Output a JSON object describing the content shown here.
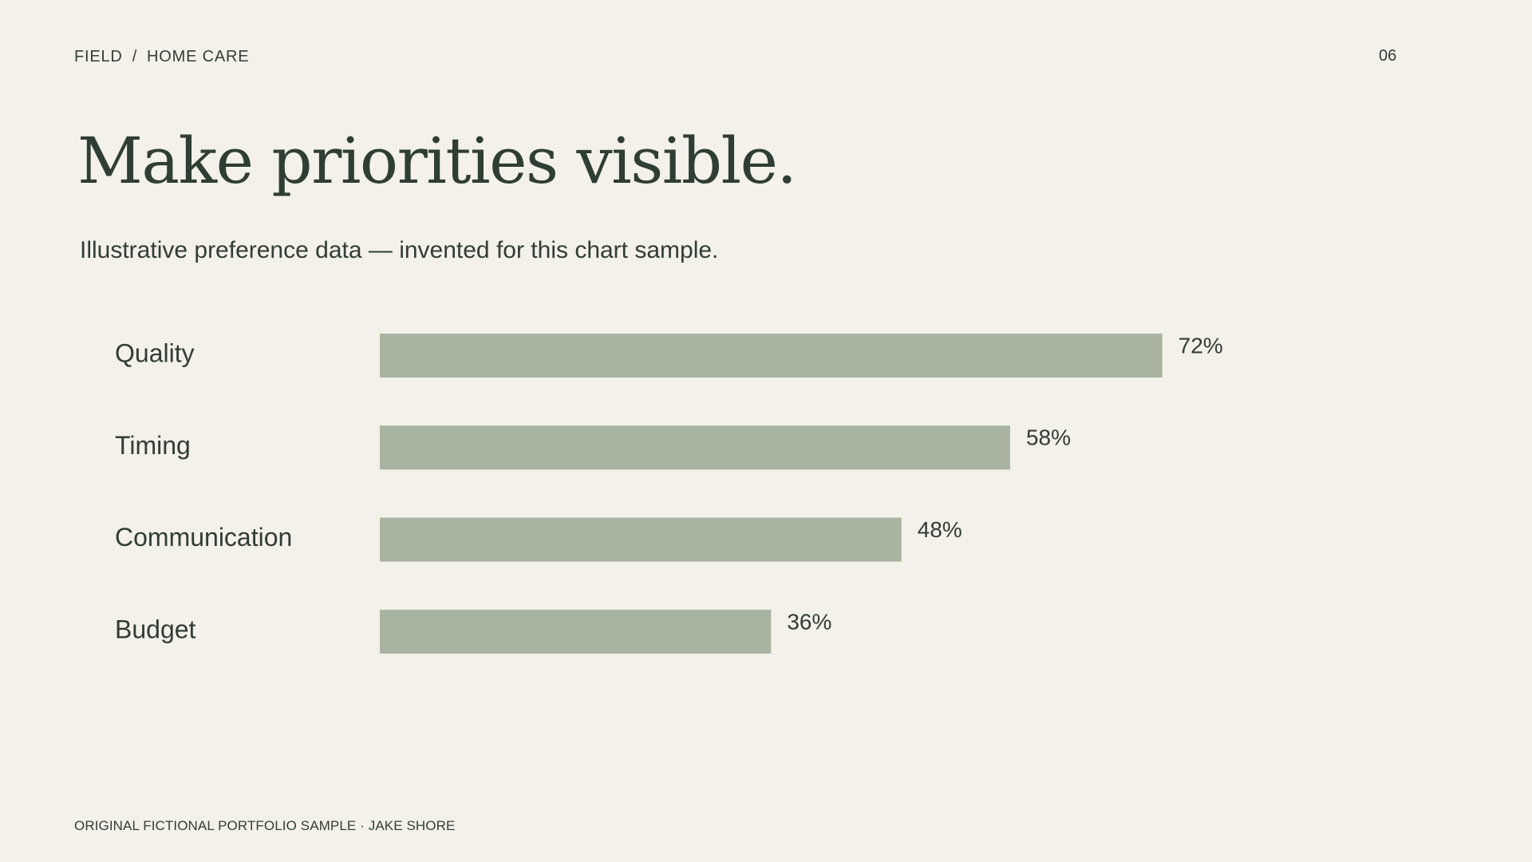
{
  "header": {
    "breadcrumb": [
      "FIELD",
      "HOME CARE"
    ],
    "breadcrumb_separator": "/",
    "page_number": "06"
  },
  "chart_data": {
    "type": "bar",
    "orientation": "horizontal",
    "title": "Make priorities visible.",
    "subtitle": "Illustrative preference data — invented for this chart sample.",
    "categories": [
      "Quality",
      "Timing",
      "Communication",
      "Budget"
    ],
    "values": [
      72,
      58,
      48,
      36
    ],
    "value_labels": [
      "72%",
      "58%",
      "48%",
      "36%"
    ],
    "unit": "%",
    "xlim": [
      0,
      100
    ],
    "grid": false,
    "legend": "none",
    "bar_color": "#a8b4a0",
    "text_color": "#313d34"
  },
  "footer": {
    "text": "ORIGINAL FICTIONAL PORTFOLIO SAMPLE · JAKE SHORE"
  }
}
